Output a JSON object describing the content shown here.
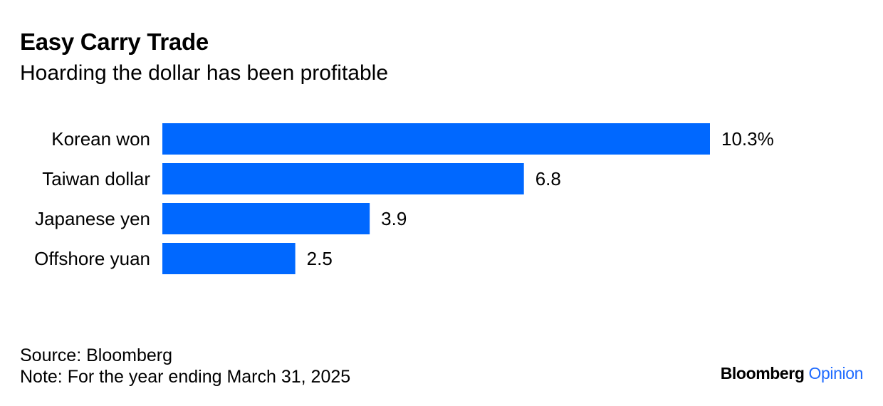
{
  "header": {
    "title": "Easy Carry Trade",
    "subtitle": "Hoarding the dollar has been profitable"
  },
  "footer": {
    "source": "Source: Bloomberg",
    "note": "Note: For the year ending March 31, 2025"
  },
  "brand": {
    "name": "Bloomberg",
    "section": "Opinion"
  },
  "colors": {
    "bar": "#0068ff",
    "brand_accent": "#1f6bff",
    "text": "#000000"
  },
  "chart_data": {
    "type": "bar",
    "orientation": "horizontal",
    "title": "Easy Carry Trade",
    "subtitle": "Hoarding the dollar has been profitable",
    "categories": [
      "Korean won",
      "Taiwan dollar",
      "Japanese yen",
      "Offshore yuan"
    ],
    "values": [
      10.3,
      6.8,
      3.9,
      2.5
    ],
    "value_labels": [
      "10.3%",
      "6.8",
      "3.9",
      "2.5"
    ],
    "unit": "%",
    "xlim": [
      0,
      10.3
    ],
    "grid": false,
    "legend": "none"
  }
}
